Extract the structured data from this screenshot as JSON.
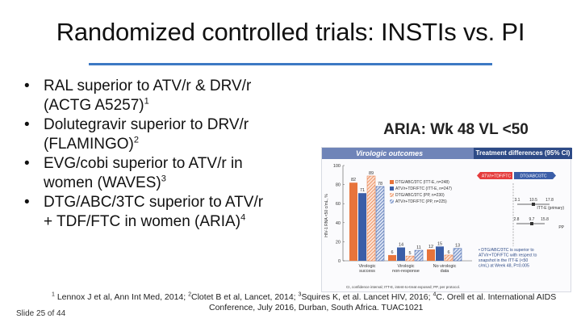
{
  "slide": {
    "title": "Randomized controlled trials: INSTIs vs. PI",
    "bullets": [
      {
        "lines": [
          "RAL superior to ATV/r & DRV/r",
          "(ACTG A5257)"
        ],
        "ref": "1"
      },
      {
        "lines": [
          "Dolutegravir superior to DRV/r",
          "(FLAMINGO)"
        ],
        "ref": "2"
      },
      {
        "lines": [
          "EVG/cobi superior to ATV/r in",
          "women (WAVES)"
        ],
        "ref": "3"
      },
      {
        "lines": [
          "DTG/ABC/3TC superior to ATV/r",
          "+ TDF/FTC in women (ARIA)"
        ],
        "ref": "4"
      }
    ],
    "aria_title": "ARIA: Wk 48 VL <50",
    "footnote": {
      "part1_pre": " Lennox J et al, Ann Int Med, 2014;  ",
      "sup1": "1",
      "sup2": "2",
      "part2": "Clotet B et al, Lancet, 2014; ",
      "sup3": "3",
      "part3": "Squires K, et al. Lancet HIV, 2016; ",
      "sup4": "4",
      "part4": "C. Orell et al. International AIDS",
      "line2": "Conference, July 2016, Durban, South Africa. TUAC1021"
    },
    "slide_number": "Slide 25 of 44"
  },
  "figure": {
    "header_left": "Virologic outcomes",
    "header_right": "Treatment differences (95% CI)",
    "ylabel": "HIV-1 RNA <50 c/mL, %",
    "yticks": [
      "0",
      "20",
      "40",
      "60",
      "80",
      "100"
    ],
    "legend": [
      "DTG/ABC/3TC (ITT-E, n=248)",
      "ATV/r+TDF/FTC (ITT-E, n=247)",
      "DTG/ABC/3TC (PP, n=230)",
      "ATV/r+TDF/FTC (PP, n=225)"
    ],
    "colors": {
      "dtg_itt": "#e8743b",
      "atv_itt": "#3b5ea8",
      "dtg_pp": "#e8743b",
      "atv_pp": "#3b5ea8"
    },
    "categories": [
      "Virologic success",
      "Virologic non-response",
      "No virologic data"
    ],
    "values": [
      [
        82,
        71,
        89,
        78
      ],
      [
        6,
        14,
        5,
        11
      ],
      [
        12,
        15,
        6,
        13
      ]
    ],
    "bar_labels": [
      [
        "82",
        "71",
        "89",
        "78"
      ],
      [
        "6",
        "14",
        "5",
        "11"
      ],
      [
        "12",
        "15",
        "6",
        "13"
      ]
    ],
    "diff_labels": {
      "arrow_left": "ATV/r+TDF/FTC",
      "arrow_right": "DTG/ABC/3TC",
      "itt": "ITT-E (primary)",
      "pp": "PP"
    },
    "diff_values": [
      {
        "low": "3.1",
        "est": "10.5",
        "high": "17.8"
      },
      {
        "low": "2.8",
        "est": "9.7",
        "high": "15.8"
      }
    ],
    "note": "DTG/ABC/3TC is superior to ATV/r+TDF/FTC with respect to snapshot in the ITT-E (<50 c/mL) at Week 48, P=0.005",
    "footer": "CI, confidence interval; ITT-E, intent-to-treat exposed; PP, per protocol."
  }
}
